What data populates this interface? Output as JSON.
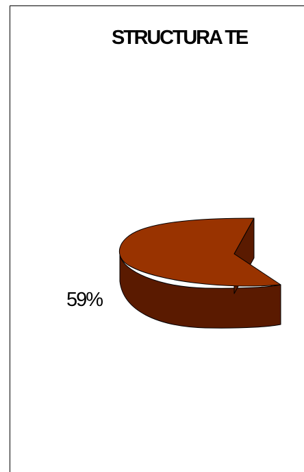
{
  "chart_data": {
    "type": "pie",
    "title": "STRUCTURA TE",
    "slices": [
      {
        "label": "59%",
        "value": 59,
        "color": "#993300",
        "side_color": "#5a1a00"
      }
    ]
  }
}
